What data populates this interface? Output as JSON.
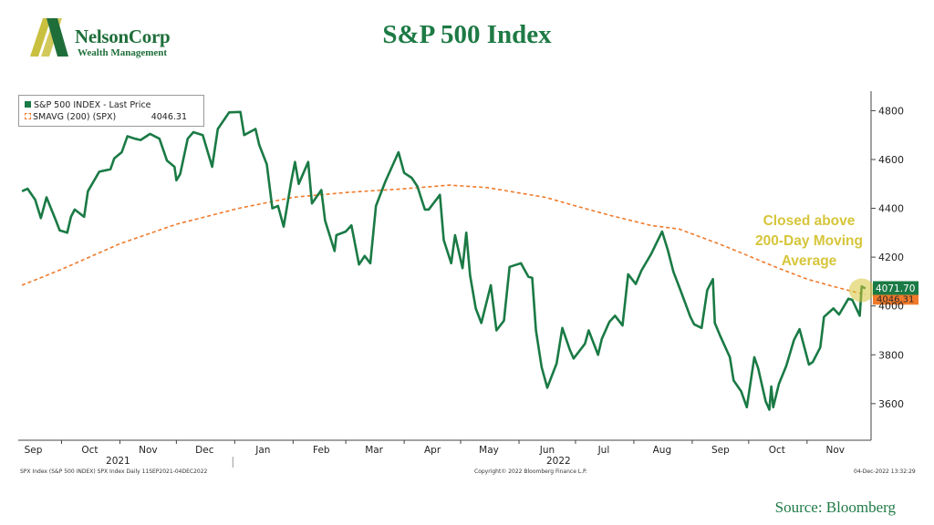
{
  "header": {
    "logo_name": "NelsonCorp",
    "logo_sub": "Wealth Management",
    "title": "S&P 500 Index"
  },
  "legend": {
    "price_label": "S&P 500 INDEX - Last Price",
    "sma_label": "SMAVG (200) (SPX)",
    "sma_value": "4046.31"
  },
  "annotation": "Closed above\n200-Day Moving\nAverage",
  "footer": {
    "source": "Source: Bloomberg",
    "left_note": "SPX Index (S&P 500 INDEX) SPX Index  Daily 11SEP2021-04DEC2022",
    "copyright": "Copyright© 2022 Bloomberg Finance L.P.",
    "timestamp": "04-Dec-2022 13:32:29"
  },
  "colors": {
    "price_line": "#1a7a45",
    "sma_line": "#f07a2a",
    "title": "#1e7a45",
    "annotation": "#d6c53a",
    "logo_mark": "#c9c040"
  },
  "chart_data": {
    "type": "line",
    "title": "S&P 500 Index",
    "ylim": [
      3450,
      4880
    ],
    "yticks": [
      3600,
      3800,
      4000,
      4200,
      4400,
      4600,
      4800
    ],
    "month_labels": [
      "Sep",
      "Oct",
      "Nov",
      "Dec",
      "Jan",
      "Feb",
      "Mar",
      "Apr",
      "May",
      "Jun",
      "Jul",
      "Aug",
      "Sep",
      "Oct",
      "Nov"
    ],
    "month_starts": [
      "2021-09-01",
      "2021-10-01",
      "2021-11-01",
      "2021-12-01",
      "2022-01-01",
      "2022-02-01",
      "2022-03-01",
      "2022-04-01",
      "2022-05-01",
      "2022-06-01",
      "2022-07-01",
      "2022-08-01",
      "2022-09-01",
      "2022-10-01",
      "2022-11-01"
    ],
    "year_labels": [
      {
        "label": "2021",
        "date": "2021-10-31"
      },
      {
        "label": "2022",
        "date": "2022-06-22"
      }
    ],
    "year_divider_date": "2021-12-31",
    "x_range": [
      "2021-09-08",
      "2022-12-05"
    ],
    "last_price_label": "4071.70",
    "sma_last_label": "4046.31",
    "series": [
      {
        "name": "S&P 500 INDEX - Last Price",
        "points": [
          [
            "2021-09-10",
            4470
          ],
          [
            "2021-09-13",
            4480
          ],
          [
            "2021-09-17",
            4435
          ],
          [
            "2021-09-20",
            4360
          ],
          [
            "2021-09-23",
            4445
          ],
          [
            "2021-09-28",
            4350
          ],
          [
            "2021-09-30",
            4310
          ],
          [
            "2021-10-04",
            4300
          ],
          [
            "2021-10-06",
            4365
          ],
          [
            "2021-10-08",
            4395
          ],
          [
            "2021-10-13",
            4365
          ],
          [
            "2021-10-15",
            4470
          ],
          [
            "2021-10-21",
            4550
          ],
          [
            "2021-10-27",
            4560
          ],
          [
            "2021-10-29",
            4605
          ],
          [
            "2021-11-02",
            4630
          ],
          [
            "2021-11-05",
            4695
          ],
          [
            "2021-11-09",
            4685
          ],
          [
            "2021-11-12",
            4680
          ],
          [
            "2021-11-17",
            4705
          ],
          [
            "2021-11-22",
            4685
          ],
          [
            "2021-11-26",
            4595
          ],
          [
            "2021-11-30",
            4570
          ],
          [
            "2021-12-01",
            4515
          ],
          [
            "2021-12-03",
            4540
          ],
          [
            "2021-12-07",
            4685
          ],
          [
            "2021-12-10",
            4712
          ],
          [
            "2021-12-15",
            4700
          ],
          [
            "2021-12-20",
            4570
          ],
          [
            "2021-12-23",
            4725
          ],
          [
            "2021-12-29",
            4793
          ],
          [
            "2022-01-04",
            4795
          ],
          [
            "2022-01-06",
            4700
          ],
          [
            "2022-01-12",
            4725
          ],
          [
            "2022-01-14",
            4660
          ],
          [
            "2022-01-18",
            4580
          ],
          [
            "2022-01-21",
            4400
          ],
          [
            "2022-01-24",
            4410
          ],
          [
            "2022-01-27",
            4325
          ],
          [
            "2022-01-31",
            4510
          ],
          [
            "2022-02-02",
            4590
          ],
          [
            "2022-02-04",
            4500
          ],
          [
            "2022-02-09",
            4590
          ],
          [
            "2022-02-11",
            4420
          ],
          [
            "2022-02-16",
            4475
          ],
          [
            "2022-02-18",
            4350
          ],
          [
            "2022-02-23",
            4225
          ],
          [
            "2022-02-24",
            4290
          ],
          [
            "2022-03-01",
            4305
          ],
          [
            "2022-03-04",
            4330
          ],
          [
            "2022-03-08",
            4170
          ],
          [
            "2022-03-11",
            4205
          ],
          [
            "2022-03-14",
            4175
          ],
          [
            "2022-03-17",
            4410
          ],
          [
            "2022-03-22",
            4510
          ],
          [
            "2022-03-29",
            4630
          ],
          [
            "2022-04-01",
            4545
          ],
          [
            "2022-04-05",
            4525
          ],
          [
            "2022-04-08",
            4490
          ],
          [
            "2022-04-12",
            4395
          ],
          [
            "2022-04-14",
            4395
          ],
          [
            "2022-04-20",
            4455
          ],
          [
            "2022-04-22",
            4270
          ],
          [
            "2022-04-26",
            4175
          ],
          [
            "2022-04-28",
            4290
          ],
          [
            "2022-05-02",
            4155
          ],
          [
            "2022-05-04",
            4300
          ],
          [
            "2022-05-06",
            4125
          ],
          [
            "2022-05-09",
            3990
          ],
          [
            "2022-05-12",
            3930
          ],
          [
            "2022-05-17",
            4085
          ],
          [
            "2022-05-20",
            3900
          ],
          [
            "2022-05-24",
            3940
          ],
          [
            "2022-05-27",
            4160
          ],
          [
            "2022-06-02",
            4175
          ],
          [
            "2022-06-06",
            4120
          ],
          [
            "2022-06-08",
            4115
          ],
          [
            "2022-06-10",
            3900
          ],
          [
            "2022-06-13",
            3750
          ],
          [
            "2022-06-16",
            3665
          ],
          [
            "2022-06-21",
            3765
          ],
          [
            "2022-06-24",
            3910
          ],
          [
            "2022-06-28",
            3820
          ],
          [
            "2022-06-30",
            3785
          ],
          [
            "2022-07-06",
            3845
          ],
          [
            "2022-07-08",
            3900
          ],
          [
            "2022-07-13",
            3800
          ],
          [
            "2022-07-15",
            3865
          ],
          [
            "2022-07-19",
            3935
          ],
          [
            "2022-07-22",
            3960
          ],
          [
            "2022-07-26",
            3920
          ],
          [
            "2022-07-29",
            4130
          ],
          [
            "2022-08-02",
            4090
          ],
          [
            "2022-08-05",
            4145
          ],
          [
            "2022-08-10",
            4210
          ],
          [
            "2022-08-16",
            4305
          ],
          [
            "2022-08-19",
            4230
          ],
          [
            "2022-08-22",
            4140
          ],
          [
            "2022-08-26",
            4060
          ],
          [
            "2022-08-31",
            3955
          ],
          [
            "2022-09-02",
            3925
          ],
          [
            "2022-09-06",
            3910
          ],
          [
            "2022-09-09",
            4065
          ],
          [
            "2022-09-12",
            4110
          ],
          [
            "2022-09-13",
            3930
          ],
          [
            "2022-09-16",
            3875
          ],
          [
            "2022-09-21",
            3790
          ],
          [
            "2022-09-23",
            3695
          ],
          [
            "2022-09-27",
            3650
          ],
          [
            "2022-09-30",
            3585
          ],
          [
            "2022-10-04",
            3790
          ],
          [
            "2022-10-06",
            3745
          ],
          [
            "2022-10-10",
            3610
          ],
          [
            "2022-10-12",
            3575
          ],
          [
            "2022-10-13",
            3670
          ],
          [
            "2022-10-14",
            3585
          ],
          [
            "2022-10-17",
            3680
          ],
          [
            "2022-10-21",
            3755
          ],
          [
            "2022-10-25",
            3860
          ],
          [
            "2022-10-28",
            3905
          ],
          [
            "2022-11-02",
            3760
          ],
          [
            "2022-11-04",
            3770
          ],
          [
            "2022-11-08",
            3830
          ],
          [
            "2022-11-10",
            3955
          ],
          [
            "2022-11-15",
            3990
          ],
          [
            "2022-11-18",
            3965
          ],
          [
            "2022-11-23",
            4030
          ],
          [
            "2022-11-25",
            4025
          ],
          [
            "2022-11-29",
            3960
          ],
          [
            "2022-11-30",
            4080
          ],
          [
            "2022-12-02",
            4071.7
          ]
        ]
      },
      {
        "name": "SMAVG (200) (SPX)",
        "points": [
          [
            "2021-09-10",
            4085
          ],
          [
            "2021-10-01",
            4150
          ],
          [
            "2021-11-01",
            4255
          ],
          [
            "2021-12-01",
            4335
          ],
          [
            "2022-01-03",
            4400
          ],
          [
            "2022-02-01",
            4445
          ],
          [
            "2022-03-01",
            4465
          ],
          [
            "2022-04-01",
            4480
          ],
          [
            "2022-04-25",
            4495
          ],
          [
            "2022-05-15",
            4485
          ],
          [
            "2022-06-15",
            4445
          ],
          [
            "2022-07-01",
            4410
          ],
          [
            "2022-07-20",
            4370
          ],
          [
            "2022-08-10",
            4330
          ],
          [
            "2022-08-25",
            4315
          ],
          [
            "2022-09-15",
            4255
          ],
          [
            "2022-10-01",
            4205
          ],
          [
            "2022-10-15",
            4160
          ],
          [
            "2022-11-01",
            4110
          ],
          [
            "2022-11-15",
            4080
          ],
          [
            "2022-12-02",
            4046.31
          ]
        ]
      }
    ]
  }
}
